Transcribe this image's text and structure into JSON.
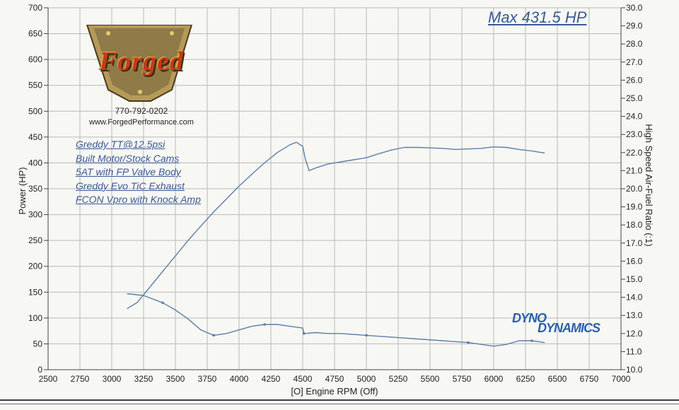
{
  "annotations": {
    "max_power": "Max 431.5 HP",
    "phone": "770-792-0202",
    "website": "www.ForgedPerformance.com",
    "mods": [
      "Greddy TT@12.5psi",
      "Built Motor/Stock Cams",
      "5AT with FP Valve Body",
      "Greddy Evo TiC Exhaust",
      "FCON Vpro with Knock Amp"
    ],
    "logo_text": "Forged",
    "dyno_logo_top": "DYNO",
    "dyno_logo_bottom": "DYNAMICS"
  },
  "colors": {
    "curve": "#5e7fa6",
    "grid": "#b9b9b9",
    "axis": "#444444",
    "label_blue": "#3a5a95",
    "logo_red": "#c23a1a"
  },
  "chart_data": {
    "type": "line",
    "xlabel": "[O] Engine RPM (Off)",
    "ylabel": "Power (HP)",
    "y2label": "High Speed Air-Fuel Ratio (:1)",
    "xlim": [
      2500,
      7000
    ],
    "ylim": [
      0,
      700
    ],
    "y2lim": [
      10.0,
      30.0
    ],
    "x_ticks": [
      2500,
      2750,
      3000,
      3250,
      3500,
      3750,
      4000,
      4250,
      4500,
      4750,
      5000,
      5250,
      5500,
      5750,
      6000,
      6250,
      6500,
      6750,
      7000
    ],
    "y_ticks": [
      0,
      50,
      100,
      150,
      200,
      250,
      300,
      350,
      400,
      450,
      500,
      550,
      600,
      650,
      700
    ],
    "y2_ticks": [
      "10.0",
      "11.0",
      "12.0",
      "13.0",
      "14.0",
      "15.0",
      "16.0",
      "17.0",
      "18.0",
      "19.0",
      "20.0",
      "21.0",
      "22.0",
      "23.0",
      "24.0",
      "25.0",
      "26.0",
      "27.0",
      "28.0",
      "29.0",
      "30.0"
    ],
    "grid": true,
    "series": [
      {
        "axis": "left",
        "x": [
          3120,
          3200,
          3300,
          3400,
          3500,
          3600,
          3700,
          3800,
          3900,
          4000,
          4100,
          4200,
          4300,
          4400,
          4450,
          4500,
          4520,
          4550,
          4600,
          4700,
          4800,
          4900,
          5000,
          5100,
          5200,
          5300,
          5400,
          5500,
          5600,
          5700,
          5800,
          5900,
          6000,
          6100,
          6200,
          6300,
          6400
        ],
        "y": [
          118,
          130,
          160,
          190,
          220,
          250,
          278,
          305,
          330,
          355,
          378,
          400,
          420,
          435,
          440,
          432,
          408,
          385,
          390,
          398,
          402,
          406,
          410,
          418,
          425,
          430,
          430,
          429,
          428,
          426,
          427,
          428,
          431,
          430,
          426,
          423,
          419
        ]
      },
      {
        "axis": "right",
        "x": [
          3120,
          3250,
          3400,
          3500,
          3600,
          3700,
          3800,
          3900,
          4000,
          4100,
          4200,
          4300,
          4400,
          4500,
          4510,
          4600,
          4700,
          4800,
          5000,
          5200,
          5400,
          5600,
          5800,
          6000,
          6100,
          6200,
          6300,
          6400
        ],
        "y": [
          14.2,
          14.1,
          13.7,
          13.3,
          12.8,
          12.2,
          11.9,
          12.0,
          12.2,
          12.4,
          12.5,
          12.5,
          12.4,
          12.3,
          12.0,
          12.05,
          12.0,
          12.0,
          11.9,
          11.8,
          11.7,
          11.6,
          11.5,
          11.3,
          11.4,
          11.6,
          11.6,
          11.5
        ]
      }
    ]
  }
}
